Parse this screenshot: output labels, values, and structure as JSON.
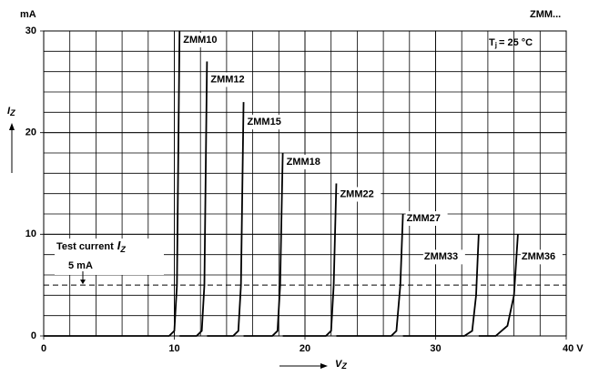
{
  "chart_data": {
    "type": "line",
    "y_unit": "mA",
    "corner_title": "ZMM...",
    "condition": {
      "symbol": "T",
      "subscript": "j",
      "text": "= 25 °C"
    },
    "y_label": {
      "symbol": "I",
      "subscript": "Z"
    },
    "x_label": {
      "symbol": "V",
      "subscript": "Z"
    },
    "xlim": [
      0,
      40
    ],
    "ylim": [
      0,
      30
    ],
    "xticks": [
      0,
      10,
      20,
      30,
      {
        "value": 40,
        "label": "40 V"
      }
    ],
    "yticks": [
      0,
      10,
      20,
      30
    ],
    "x_gridlines": [
      2,
      4,
      6,
      8,
      10,
      12,
      14,
      16,
      18,
      20,
      22,
      24,
      26,
      28,
      30,
      32,
      34,
      36,
      38
    ],
    "y_gridlines": [
      2,
      4,
      6,
      8,
      10,
      12,
      14,
      16,
      18,
      20,
      22,
      24,
      26,
      28
    ],
    "test_current": {
      "label_text": "Test current",
      "symbol": "I",
      "subscript": "Z",
      "value": 5,
      "value_label": "5 mA"
    },
    "color": "#000000",
    "series": [
      {
        "name": "ZMM10",
        "x": [
          0,
          9.6,
          10.0,
          10.2,
          10.4
        ],
        "values": [
          0,
          0,
          0.5,
          5,
          30
        ]
      },
      {
        "name": "ZMM12",
        "x": [
          10.4,
          11.7,
          12.1,
          12.3,
          12.5
        ],
        "values": [
          0,
          0,
          0.5,
          5,
          27
        ]
      },
      {
        "name": "ZMM15",
        "x": [
          12.5,
          14.5,
          14.9,
          15.1,
          15.3
        ],
        "values": [
          0,
          0,
          0.5,
          5,
          23
        ]
      },
      {
        "name": "ZMM18",
        "x": [
          15.3,
          17.5,
          17.9,
          18.1,
          18.3
        ],
        "values": [
          0,
          0,
          0.5,
          5,
          18
        ]
      },
      {
        "name": "ZMM22",
        "x": [
          18.3,
          21.6,
          22.0,
          22.2,
          22.4
        ],
        "values": [
          0,
          0,
          0.5,
          5,
          15
        ]
      },
      {
        "name": "ZMM27",
        "x": [
          22.4,
          26.6,
          27.0,
          27.3,
          27.5
        ],
        "values": [
          0,
          0,
          0.5,
          5,
          12
        ]
      },
      {
        "name": "ZMM33",
        "x": [
          27.5,
          32.2,
          32.8,
          33.1,
          33.3
        ],
        "values": [
          0,
          0,
          0.5,
          4,
          10
        ]
      },
      {
        "name": "ZMM36",
        "x": [
          33.3,
          34.6,
          35.5,
          36.0,
          36.3
        ],
        "values": [
          0,
          0,
          1,
          4,
          10
        ]
      }
    ]
  }
}
